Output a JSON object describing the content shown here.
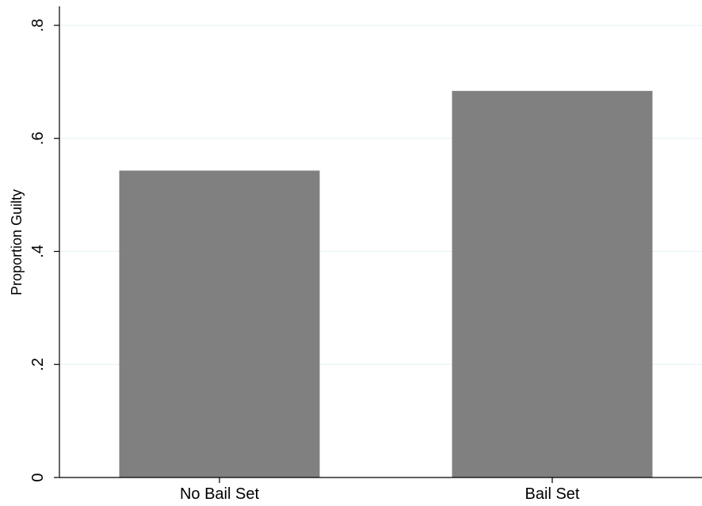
{
  "chart_data": {
    "type": "bar",
    "title": "",
    "xlabel": "",
    "ylabel": "Proportion Guilty",
    "categories": [
      "No Bail Set",
      "Bail Set"
    ],
    "values": [
      0.543,
      0.684
    ],
    "ylim": [
      0,
      0.8
    ],
    "yticks": [
      0,
      0.2,
      0.4,
      0.6,
      0.8
    ],
    "ytick_labels": [
      "0",
      ".2",
      ".4",
      ".6",
      ".8"
    ],
    "grid": true,
    "legend": "none",
    "colors": {
      "bar": "#808080",
      "grid": "#eaf2f3",
      "axis": "#000000",
      "background": "#ffffff"
    }
  }
}
